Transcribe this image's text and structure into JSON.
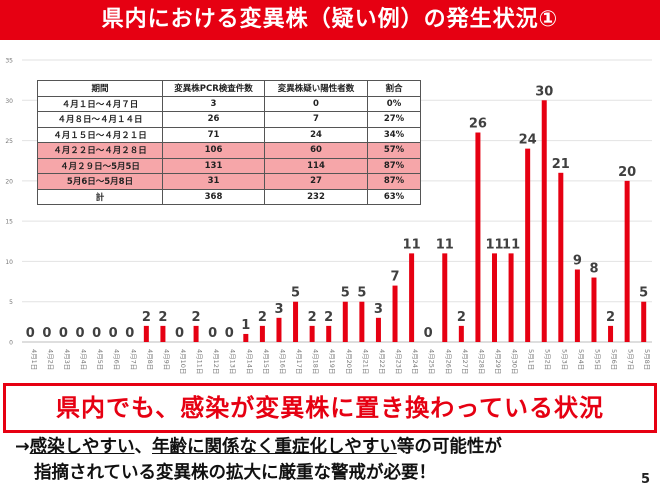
{
  "title": "県内における変異株（疑い例）の発生状況①",
  "chart_data": {
    "type": "bar",
    "ylim": [
      0,
      35
    ],
    "yticks": [
      0,
      5,
      10,
      15,
      20,
      25,
      30,
      35
    ],
    "grid": true,
    "bar_color": "#e60012",
    "categories": [
      "4月1日",
      "4月2日",
      "4月3日",
      "4月4日",
      "4月5日",
      "4月6日",
      "4月7日",
      "4月8日",
      "4月9日",
      "4月10日",
      "4月11日",
      "4月12日",
      "4月13日",
      "4月14日",
      "4月15日",
      "4月16日",
      "4月17日",
      "4月18日",
      "4月19日",
      "4月20日",
      "4月21日",
      "4月22日",
      "4月23日",
      "4月24日",
      "4月25日",
      "4月26日",
      "4月27日",
      "4月28日",
      "4月29日",
      "4月30日",
      "5月1日",
      "5月2日",
      "5月3日",
      "5月4日",
      "5月5日",
      "5月6日",
      "5月7日",
      "5月8日"
    ],
    "values": [
      0,
      0,
      0,
      0,
      0,
      0,
      0,
      2,
      2,
      0,
      2,
      0,
      0,
      1,
      2,
      3,
      5,
      2,
      2,
      5,
      5,
      3,
      7,
      11,
      0,
      11,
      2,
      26,
      11,
      11,
      24,
      30,
      21,
      9,
      8,
      2,
      20,
      5
    ]
  },
  "table": {
    "headers": [
      "期間",
      "変異株PCR検査件数",
      "変異株疑い陽性者数",
      "割合"
    ],
    "rows": [
      {
        "period": "４月１日～４月７日",
        "tests": "3",
        "positives": "0",
        "rate": "0%",
        "highlight": false
      },
      {
        "period": "４月８日～４月１４日",
        "tests": "26",
        "positives": "7",
        "rate": "27%",
        "highlight": false
      },
      {
        "period": "４月１５日～４月２１日",
        "tests": "71",
        "positives": "24",
        "rate": "34%",
        "highlight": false
      },
      {
        "period": "４月２２日～４月２８日",
        "tests": "106",
        "positives": "60",
        "rate": "57%",
        "highlight": true
      },
      {
        "period": "４月２９日～5月5日",
        "tests": "131",
        "positives": "114",
        "rate": "87%",
        "highlight": true
      },
      {
        "period": "5月6日～5月8日",
        "tests": "31",
        "positives": "27",
        "rate": "87%",
        "highlight": true
      },
      {
        "period": "計",
        "tests": "368",
        "positives": "232",
        "rate": "63%",
        "highlight": false
      }
    ]
  },
  "message": "県内でも、感染が変異株に置き換わっている状況",
  "note": {
    "arrow": "→",
    "line1_u1": "感染しやすい",
    "line1_sep": "、",
    "line1_u2": "年齢に関係なく重症化しやすい",
    "line1_rest": "等の可能性が",
    "line2": "指摘されている変異株の拡大に厳重な警戒が必要！"
  },
  "page_number": "5"
}
